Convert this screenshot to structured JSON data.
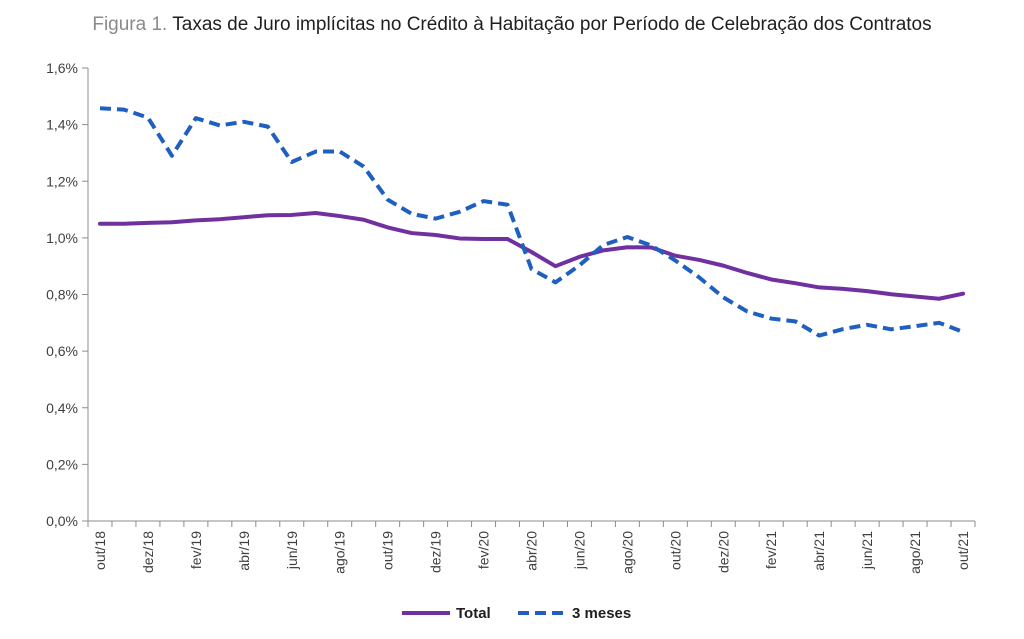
{
  "chart_data": {
    "type": "line",
    "title_prefix": "Figura 1.",
    "title": "Taxas de Juro implícitas no Crédito à Habitação por Período de Celebração dos Contratos",
    "ylim": [
      0,
      1.6
    ],
    "y_ticks": [
      "0,0%",
      "0,2%",
      "0,4%",
      "0,6%",
      "0,8%",
      "1,0%",
      "1,2%",
      "1,4%",
      "1,6%"
    ],
    "x": [
      "out/18",
      "nov/18",
      "dez/18",
      "jan/19",
      "fev/19",
      "mar/19",
      "abr/19",
      "mai/19",
      "jun/19",
      "jul/19",
      "ago/19",
      "set/19",
      "out/19",
      "nov/19",
      "dez/19",
      "jan/20",
      "fev/20",
      "mar/20",
      "abr/20",
      "mai/20",
      "jun/20",
      "jul/20",
      "ago/20",
      "set/20",
      "out/20",
      "nov/20",
      "dez/20",
      "jan/21",
      "fev/21",
      "mar/21",
      "abr/21",
      "mai/21",
      "jun/21",
      "jul/21",
      "ago/21",
      "set/21",
      "out/21"
    ],
    "x_tick_labels": [
      "out/18",
      "",
      "dez/18",
      "",
      "fev/19",
      "",
      "abr/19",
      "",
      "jun/19",
      "",
      "ago/19",
      "",
      "out/19",
      "",
      "dez/19",
      "",
      "fev/20",
      "",
      "abr/20",
      "",
      "jun/20",
      "",
      "ago/20",
      "",
      "out/20",
      "",
      "dez/20",
      "",
      "fev/21",
      "",
      "abr/21",
      "",
      "jun/21",
      "",
      "ago/21",
      "",
      "out/21"
    ],
    "series": [
      {
        "name": "Total",
        "color": "#7030a0",
        "style": "solid",
        "values": [
          1.05,
          1.05,
          1.053,
          1.055,
          1.062,
          1.066,
          1.073,
          1.08,
          1.081,
          1.088,
          1.077,
          1.064,
          1.037,
          1.017,
          1.01,
          0.998,
          0.996,
          0.996,
          0.95,
          0.9,
          0.933,
          0.956,
          0.967,
          0.966,
          0.937,
          0.922,
          0.902,
          0.876,
          0.853,
          0.84,
          0.825,
          0.82,
          0.812,
          0.801,
          0.793,
          0.785,
          0.803
        ]
      },
      {
        "name": "3 meses",
        "color": "#1f5fbf",
        "style": "dashed",
        "values": [
          1.458,
          1.453,
          1.425,
          1.29,
          1.423,
          1.397,
          1.41,
          1.393,
          1.268,
          1.305,
          1.305,
          1.252,
          1.135,
          1.085,
          1.068,
          1.092,
          1.13,
          1.117,
          0.89,
          0.843,
          0.903,
          0.975,
          1.003,
          0.973,
          0.92,
          0.86,
          0.79,
          0.74,
          0.715,
          0.705,
          0.655,
          0.678,
          0.693,
          0.677,
          0.688,
          0.7,
          0.668
        ]
      }
    ],
    "legend_position": "bottom-center",
    "grid": false
  }
}
